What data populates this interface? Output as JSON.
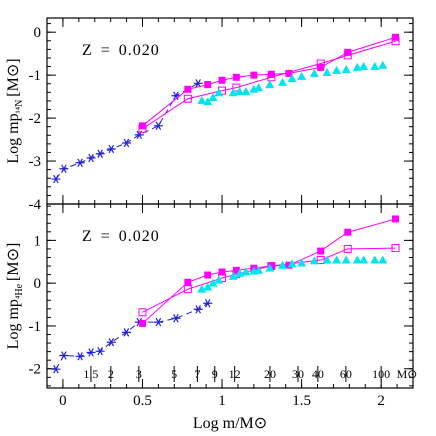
{
  "chart_data": [
    {
      "type": "scatter-line",
      "annotation": "Z = 0.020",
      "ylabel": "Log mp",
      "ylabel_sub": "¹⁴N",
      "ylabel_unit": "[M⊙]",
      "xlim": [
        -0.1,
        2.2
      ],
      "xticks": [
        0,
        0.5,
        1,
        1.5,
        2
      ],
      "ylim": [
        -4,
        0.33
      ],
      "yticks": [
        -4,
        -3,
        -2,
        -1,
        0
      ],
      "series": [
        {
          "color": "#1f1fe0",
          "marker": "star",
          "line": "dashed",
          "x": [
            -0.044,
            0.006,
            0.108,
            0.177,
            0.234,
            0.304,
            0.399,
            0.48,
            0.6,
            0.71,
            0.85
          ],
          "values": [
            -3.42,
            -3.18,
            -3.04,
            -2.93,
            -2.83,
            -2.72,
            -2.58,
            -2.39,
            -2.18,
            -1.48,
            -1.19
          ]
        },
        {
          "color": "#ff00ff",
          "marker": "square",
          "line": "solid",
          "x": [
            0.5,
            0.785,
            0.91,
            1.0,
            1.09,
            1.2,
            1.31,
            1.42,
            1.62,
            1.79,
            2.09
          ],
          "values": [
            -2.18,
            -1.33,
            -1.22,
            -1.12,
            -1.05,
            -1.0,
            -0.98,
            -0.96,
            -0.82,
            -0.47,
            -0.12
          ]
        },
        {
          "color": "#ff00ff",
          "marker": "open-square",
          "line": "solid",
          "x": [
            0.5,
            0.785,
            1.0,
            1.09,
            1.31,
            1.62,
            1.79,
            2.09
          ],
          "values": [
            -2.25,
            -1.55,
            -1.36,
            -1.29,
            -1.05,
            -0.73,
            -0.54,
            -0.21
          ]
        },
        {
          "color": "#00e5ee",
          "marker": "triangle",
          "line": "none",
          "x": [
            0.873,
            0.91,
            0.943,
            0.98,
            1.07,
            1.11,
            1.15,
            1.2,
            1.23,
            1.3,
            1.38,
            1.44,
            1.5,
            1.58,
            1.66,
            1.72,
            1.78,
            1.85,
            1.89,
            1.96,
            2.01
          ],
          "values": [
            -1.59,
            -1.62,
            -1.52,
            -1.41,
            -1.41,
            -1.38,
            -1.38,
            -1.33,
            -1.29,
            -1.22,
            -1.17,
            -1.08,
            -1.03,
            -0.96,
            -0.94,
            -0.89,
            -0.87,
            -0.82,
            -0.8,
            -0.8,
            -0.77
          ]
        }
      ]
    },
    {
      "type": "scatter-line",
      "annotation": "Z = 0.020",
      "ylabel": "Log mp",
      "ylabel_sub": "⁴He",
      "ylabel_unit": "[M⊙]",
      "xlabel": "Log m/M⊙",
      "xlim": [
        -0.1,
        2.2
      ],
      "xticks": [
        0,
        0.5,
        1,
        1.5,
        2
      ],
      "ylim": [
        -2.45,
        1.85
      ],
      "yticks": [
        -2,
        -1,
        0,
        1
      ],
      "mass_ticks": [
        1.5,
        2,
        3,
        5,
        7,
        9,
        12,
        20,
        30,
        40,
        60,
        100
      ],
      "mass_unit": "M⊙",
      "series": [
        {
          "color": "#1f1fe0",
          "marker": "star",
          "line": "dashed",
          "x": [
            -0.044,
            0.006,
            0.108,
            0.177,
            0.234,
            0.304,
            0.399,
            0.48,
            0.6,
            0.71,
            0.85,
            0.91
          ],
          "values": [
            -2.01,
            -1.69,
            -1.71,
            -1.62,
            -1.59,
            -1.38,
            -1.15,
            -0.91,
            -0.91,
            -0.82,
            -0.61,
            -0.47
          ]
        },
        {
          "color": "#ff00ff",
          "marker": "square",
          "line": "solid",
          "x": [
            0.5,
            0.785,
            0.91,
            1.0,
            1.09,
            1.2,
            1.31,
            1.42,
            1.62,
            1.79,
            2.09
          ],
          "values": [
            -0.94,
            0.02,
            0.19,
            0.26,
            0.3,
            0.35,
            0.4,
            0.42,
            0.75,
            1.19,
            1.5
          ]
        },
        {
          "color": "#ff00ff",
          "marker": "open-square",
          "line": "solid",
          "x": [
            0.5,
            0.785,
            1.0,
            1.09,
            1.31,
            1.62,
            1.79,
            2.09
          ],
          "values": [
            -0.68,
            -0.14,
            0.12,
            0.21,
            0.4,
            0.54,
            0.8,
            0.82
          ]
        },
        {
          "color": "#00e5ee",
          "marker": "triangle",
          "line": "none",
          "x": [
            0.873,
            0.91,
            0.943,
            0.98,
            1.07,
            1.11,
            1.15,
            1.2,
            1.23,
            1.3,
            1.38,
            1.44,
            1.5,
            1.58,
            1.66,
            1.72,
            1.78,
            1.85,
            1.89,
            1.96,
            2.01
          ],
          "values": [
            -0.14,
            -0.09,
            0.0,
            0.07,
            0.16,
            0.23,
            0.26,
            0.28,
            0.3,
            0.35,
            0.42,
            0.45,
            0.47,
            0.52,
            0.54,
            0.54,
            0.54,
            0.54,
            0.54,
            0.54,
            0.54
          ]
        }
      ]
    }
  ]
}
